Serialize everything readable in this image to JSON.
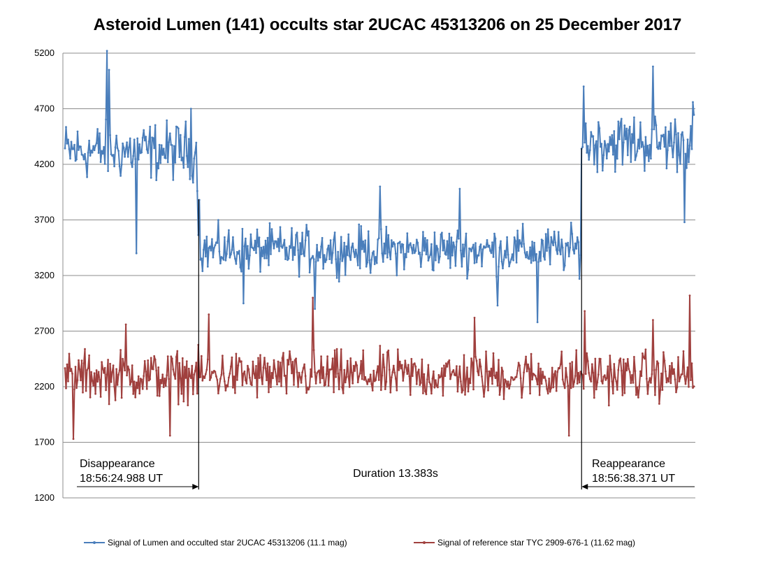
{
  "chart_data": {
    "type": "line",
    "title": "Asteroid Lumen (141) occults star 2UCAC 45313206 on 25 December 2017",
    "xlabel": "",
    "ylabel": "",
    "ylim": [
      1200,
      5200
    ],
    "yticks": [
      1200,
      1700,
      2200,
      2700,
      3200,
      3700,
      4200,
      4700,
      5200
    ],
    "grid": true,
    "legend_position": "bottom",
    "n_points": 600,
    "event_start_index": 126,
    "event_end_index": 492,
    "series": [
      {
        "name": "Signal of Lumen and occulted star 2UCAC 45313206 (11.1 mag)",
        "color": "#4a7ebb",
        "levels_approx": [
          {
            "from_index": 0,
            "to_index": 126,
            "value": 4320
          },
          {
            "from_index": 127,
            "to_index": 491,
            "value": 3430
          },
          {
            "from_index": 492,
            "to_index": 599,
            "value": 4400
          }
        ],
        "max_approx": 5220,
        "min_approx": 2780
      },
      {
        "name": "Signal of reference star TYC 2909-676-1 (11.62 mag)",
        "color": "#a0403e",
        "level_approx": 2300,
        "max_approx": 3020,
        "min_approx": 1730
      }
    ],
    "annotations": [
      {
        "text_line1": "Disappearance",
        "text_line2": "18:56:24.988 UT"
      },
      {
        "text": "Duration 13.383s"
      },
      {
        "text_line1": "Reappearance",
        "text_line2": "18:56:38.371 UT"
      }
    ]
  }
}
